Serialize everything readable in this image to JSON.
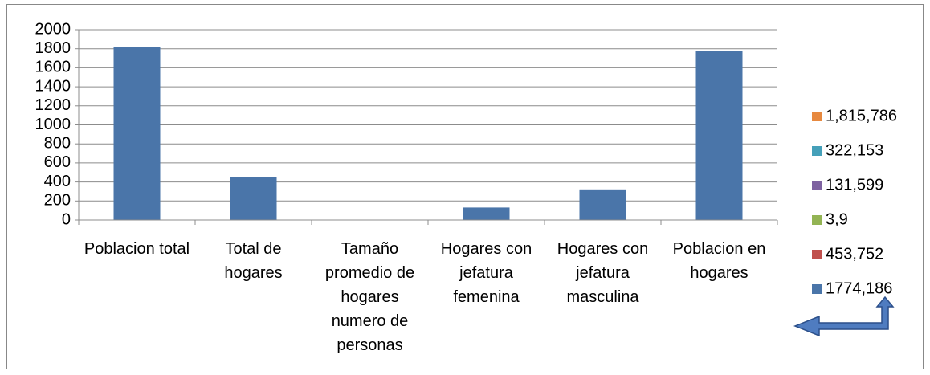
{
  "chart_data": {
    "type": "bar",
    "categories": [
      "Poblacion total",
      "Total de hogares",
      "Tamaño promedio de hogares numero de personas",
      "Hogares con jefatura femenina",
      "Hogares con jefatura masculina",
      "Poblacion en hogares"
    ],
    "series": [
      {
        "name": "1,815,786",
        "color": "#e7893f",
        "values": [
          null,
          null,
          null,
          null,
          null,
          null
        ]
      },
      {
        "name": "322,153",
        "color": "#45a0b9",
        "values": [
          null,
          null,
          null,
          null,
          null,
          null
        ]
      },
      {
        "name": "131,599",
        "color": "#7e62a1",
        "values": [
          null,
          null,
          null,
          null,
          null,
          null
        ]
      },
      {
        "name": "3,9",
        "color": "#93b454",
        "values": [
          null,
          null,
          null,
          null,
          null,
          null
        ]
      },
      {
        "name": "453,752",
        "color": "#c0504d",
        "values": [
          null,
          null,
          null,
          null,
          null,
          null
        ]
      },
      {
        "name": "1774,186",
        "color": "#4a75a9",
        "values": [
          1815.786,
          453.752,
          3.9,
          131.599,
          322.153,
          1774.186
        ]
      }
    ],
    "ylim": [
      0,
      2000
    ],
    "yticks": [
      0,
      200,
      400,
      600,
      800,
      1000,
      1200,
      1400,
      1600,
      1800,
      2000
    ],
    "grid": true,
    "legend": "right"
  }
}
